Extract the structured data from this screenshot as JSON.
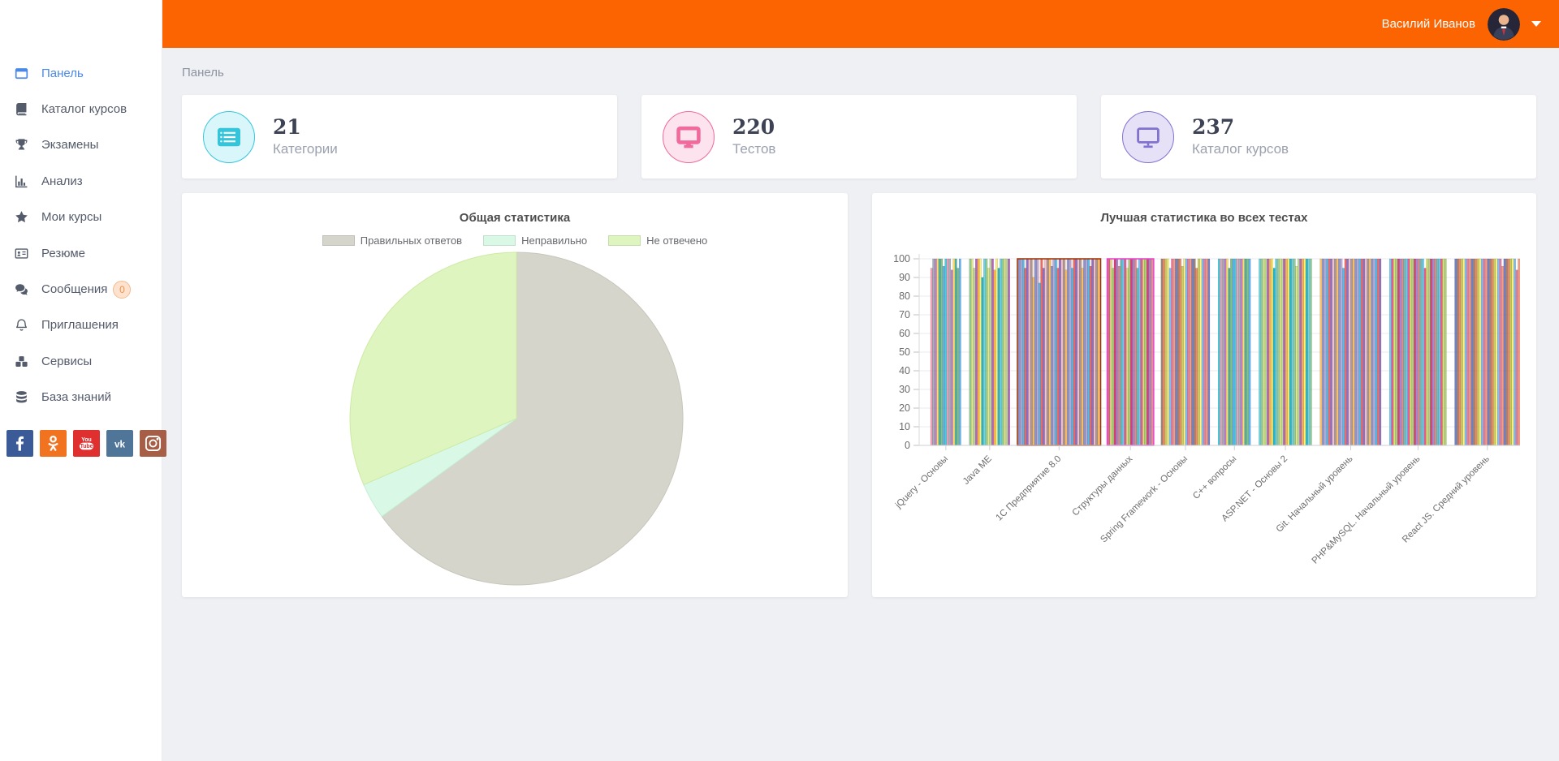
{
  "topbar": {
    "user_name": "Василий Иванов",
    "bg_color": "#fb6400"
  },
  "breadcrumb": "Панель",
  "sidebar": {
    "items": [
      {
        "key": "panel",
        "label": "Панель",
        "icon": "window-icon",
        "active": true
      },
      {
        "key": "course-catalog",
        "label": "Каталог курсов",
        "icon": "book-icon"
      },
      {
        "key": "exams",
        "label": "Экзамены",
        "icon": "trophy-icon"
      },
      {
        "key": "analysis",
        "label": "Анализ",
        "icon": "bar-chart-icon"
      },
      {
        "key": "my-courses",
        "label": "Мои курсы",
        "icon": "star-icon"
      },
      {
        "key": "resume",
        "label": "Резюме",
        "icon": "id-card-icon"
      },
      {
        "key": "messages",
        "label": "Сообщения",
        "icon": "comments-icon",
        "badge": "0"
      },
      {
        "key": "invitations",
        "label": "Приглашения",
        "icon": "bell-icon"
      },
      {
        "key": "services",
        "label": "Сервисы",
        "icon": "cubes-icon"
      },
      {
        "key": "knowledge-base",
        "label": "База знаний",
        "icon": "database-icon"
      }
    ],
    "social": [
      {
        "key": "facebook",
        "color": "#3a5a98"
      },
      {
        "key": "odnoklassniki",
        "color": "#f1731f"
      },
      {
        "key": "youtube",
        "color": "#e02f2f"
      },
      {
        "key": "vk",
        "color": "#4f7599"
      },
      {
        "key": "instagram",
        "color": "#a65e46"
      }
    ]
  },
  "stat_cards": [
    {
      "key": "categories",
      "value": "21",
      "label": "Категории",
      "accent": "#35c5da",
      "circle_bg": "#d9f6fb",
      "icon": "list-icon"
    },
    {
      "key": "tests",
      "value": "220",
      "label": "Тестов",
      "accent": "#f06a9c",
      "circle_bg": "#fce3ee",
      "icon": "monitor-icon"
    },
    {
      "key": "course-catalog",
      "value": "237",
      "label": "Каталог курсов",
      "accent": "#8172cf",
      "circle_bg": "#e6e1f7",
      "icon": "monitor-outline-icon"
    }
  ],
  "chart_data": [
    {
      "type": "pie",
      "title": "Общая статистика",
      "legend_position": "top",
      "slices": [
        {
          "label": "Правильных ответов",
          "value": 65.0,
          "color": "#d5d5cc",
          "border": "#c6c6ba"
        },
        {
          "label": "Неправильно",
          "value": 3.5,
          "color": "#d9f8e5",
          "border": "#c4eed4"
        },
        {
          "label": "Не отвечено",
          "value": 31.5,
          "color": "#def5c0",
          "border": "#cdeaa4"
        }
      ]
    },
    {
      "type": "bar",
      "title": "Лучшая статистика во всех тестах",
      "ylabel": "",
      "xlabel": "",
      "ylim": [
        0,
        100
      ],
      "yticks": [
        0,
        10,
        20,
        30,
        40,
        50,
        60,
        70,
        80,
        90,
        100
      ],
      "grid": true,
      "legend_position": "none",
      "palette": [
        "#f48fb1",
        "#9575cd",
        "#4dd0e1",
        "#fff176",
        "#a1887f",
        "#90a4ae",
        "#e57373",
        "#81c784",
        "#64b5f6",
        "#ffb74d",
        "#ba68c8",
        "#4db6ac",
        "#dce775",
        "#f06292",
        "#7986cb",
        "#ffd54f",
        "#4fc3f7",
        "#aed581",
        "#ff8a65",
        "#b39ddb",
        "#26a69a",
        "#ec407a",
        "#ab47bc",
        "#5c6bc0",
        "#29b6f6",
        "#66bb6a",
        "#d4e157",
        "#ffa726",
        "#8d6e63",
        "#ef5350",
        "#42a5f5",
        "#9ccc65",
        "#ffee58",
        "#ff7043",
        "#7e57c2",
        "#26c6da",
        "#d81b60",
        "#00acc1",
        "#c0ca33",
        "#f8bbd0"
      ],
      "groups": [
        {
          "label": "jQuery - Основы",
          "bars": [
            95,
            100,
            100,
            100,
            100,
            100,
            96,
            100,
            100,
            100,
            94,
            100,
            100,
            95,
            100
          ]
        },
        {
          "label": "Java ME",
          "bars": [
            100,
            100,
            95,
            100,
            100,
            100,
            90,
            100,
            100,
            95,
            100,
            100,
            94,
            100,
            95,
            100,
            100,
            100,
            100,
            100
          ]
        },
        {
          "label": "1С Предприятие 8.0",
          "box": "#9c2f00",
          "bars": [
            100,
            100,
            100,
            95,
            100,
            100,
            100,
            90,
            100,
            100,
            87,
            100,
            95,
            100,
            100,
            100,
            96,
            100,
            100,
            95,
            100,
            100,
            100,
            94,
            100,
            100,
            95,
            100,
            100,
            100,
            100,
            95,
            100,
            100,
            100,
            96,
            100,
            100,
            100,
            100
          ]
        },
        {
          "label": "Структуры данных",
          "box": "#e83ec8",
          "bars": [
            100,
            100,
            95,
            100,
            100,
            96,
            100,
            100,
            100,
            95,
            100,
            100,
            100,
            100,
            95,
            100,
            100,
            100,
            100,
            100,
            100,
            100
          ]
        },
        {
          "label": "Spring Framework - Основы",
          "bars": [
            100,
            100,
            100,
            100,
            95,
            100,
            100,
            100,
            100,
            100,
            96,
            100,
            100,
            100,
            100,
            100,
            100,
            95,
            100,
            100,
            100,
            100,
            100,
            100
          ]
        },
        {
          "label": "C++ вопросы",
          "bars": [
            100,
            100,
            100,
            100,
            100,
            95,
            100,
            100,
            100,
            100,
            100,
            100,
            100,
            100,
            100,
            100
          ]
        },
        {
          "label": "ASP.NET - Основы 2",
          "bars": [
            100,
            100,
            100,
            100,
            100,
            100,
            100,
            95,
            100,
            100,
            100,
            100,
            100,
            100,
            100,
            100,
            100,
            100,
            96,
            100,
            100,
            100,
            100,
            100,
            100,
            100
          ]
        },
        {
          "label": "Git. Начальный уровень",
          "bars": [
            100,
            100,
            100,
            100,
            100,
            100,
            100,
            100,
            100,
            100,
            100,
            95,
            100,
            100,
            100,
            100,
            100,
            100,
            100,
            100,
            100,
            100,
            100,
            100,
            100,
            100,
            100,
            100,
            100,
            100
          ]
        },
        {
          "label": "PHP&MySQL. Начальный уровень",
          "bars": [
            100,
            100,
            100,
            100,
            100,
            100,
            100,
            100,
            100,
            100,
            100,
            100,
            100,
            100,
            100,
            100,
            100,
            95,
            100,
            100,
            100,
            100,
            100,
            100,
            100,
            100,
            100,
            100
          ]
        },
        {
          "label": "React JS. Средний уровень",
          "bars": [
            100,
            100,
            100,
            100,
            100,
            100,
            100,
            100,
            100,
            100,
            100,
            100,
            100,
            100,
            100,
            100,
            100,
            100,
            100,
            100,
            100,
            100,
            100,
            96,
            100,
            100,
            100,
            100,
            100,
            100,
            94,
            100
          ]
        }
      ]
    }
  ]
}
